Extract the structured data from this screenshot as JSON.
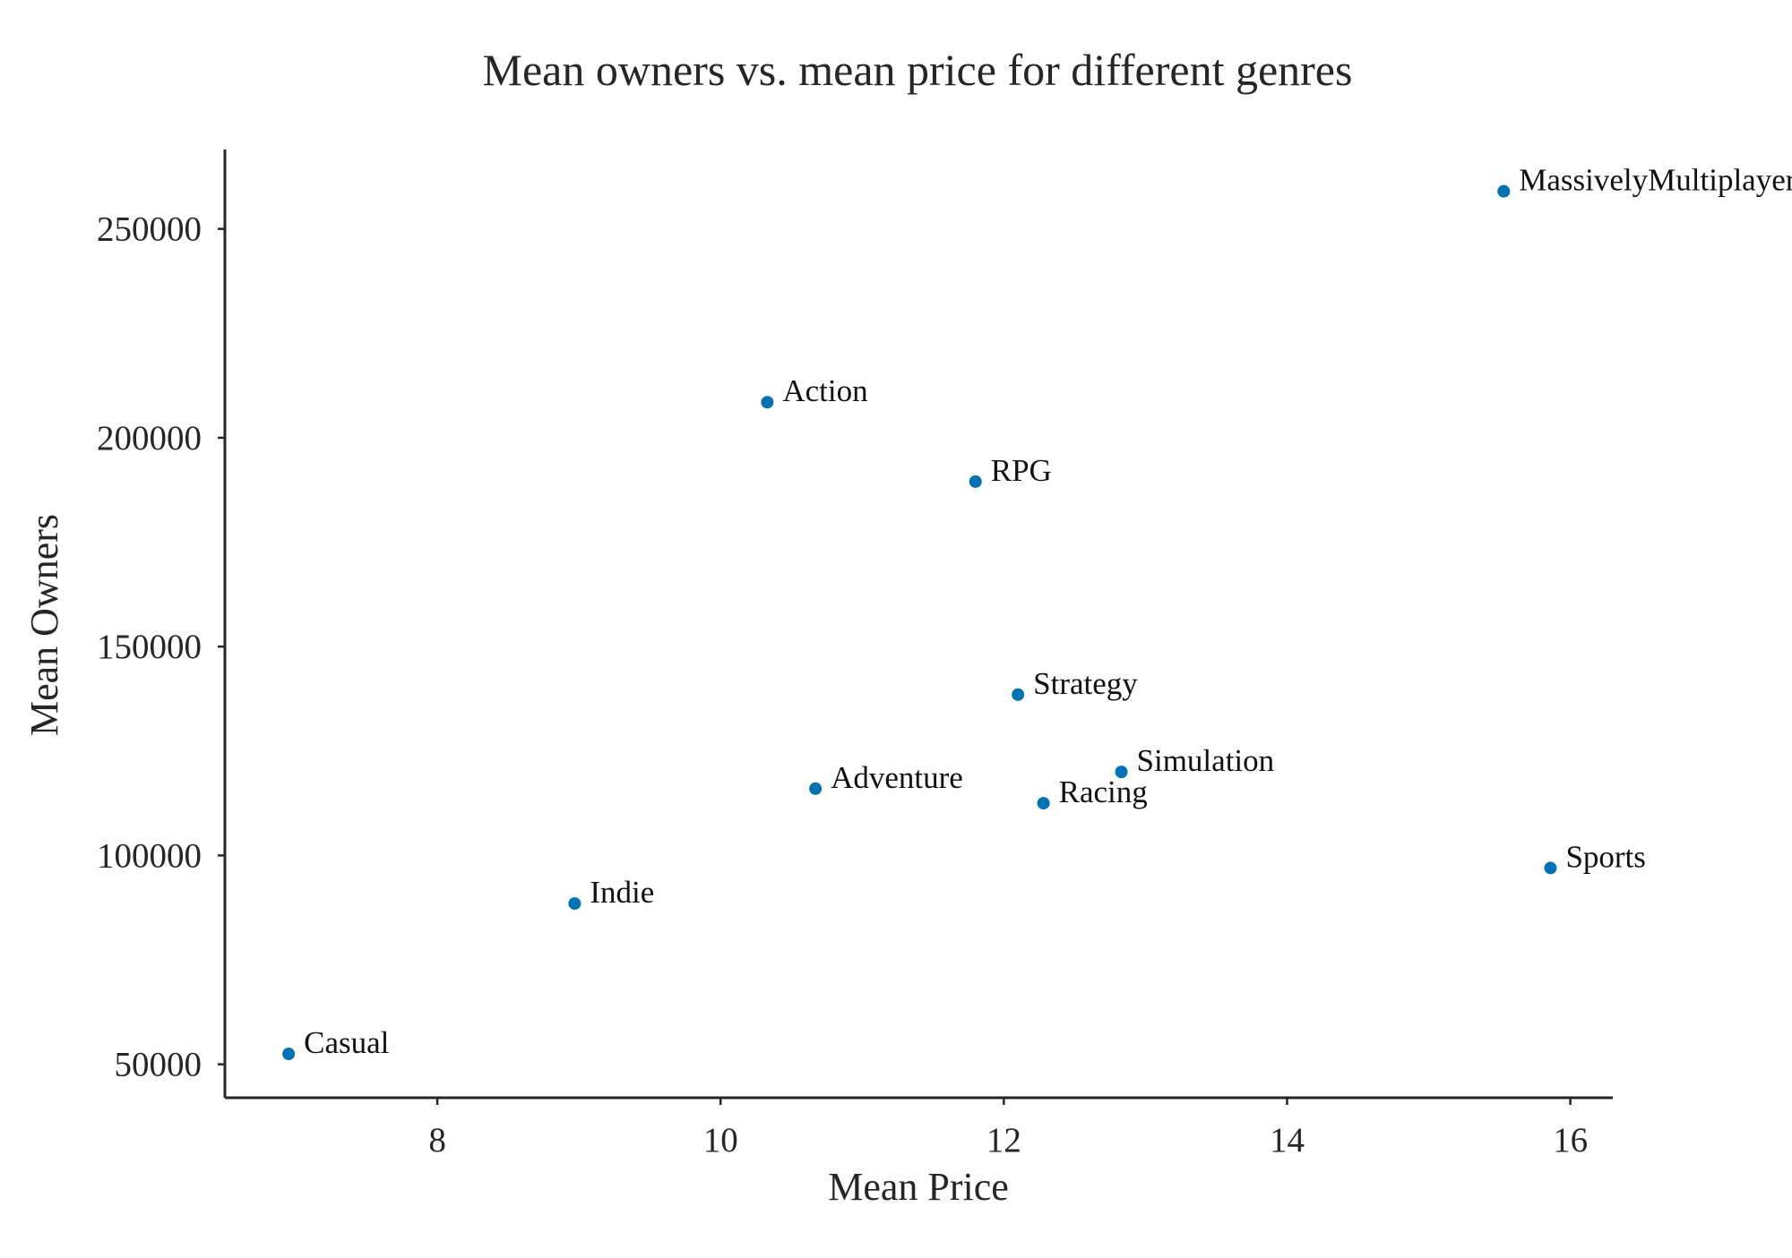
{
  "chart_data": {
    "type": "scatter",
    "title": "Mean owners vs. mean price for different genres",
    "xlabel": "Mean Price",
    "ylabel": "Mean Owners",
    "xlim": [
      6.5,
      16.3
    ],
    "ylim": [
      42000,
      269000
    ],
    "xticks": [
      8,
      10,
      12,
      14,
      16
    ],
    "yticks": [
      50000,
      100000,
      150000,
      200000,
      250000
    ],
    "grid": false,
    "marker_color": "#0072b2",
    "points": [
      {
        "label": "Casual",
        "x": 6.95,
        "y": 52500
      },
      {
        "label": "Indie",
        "x": 8.97,
        "y": 88500
      },
      {
        "label": "Action",
        "x": 10.33,
        "y": 208500
      },
      {
        "label": "Adventure",
        "x": 10.67,
        "y": 116000
      },
      {
        "label": "RPG",
        "x": 11.8,
        "y": 189500
      },
      {
        "label": "Strategy",
        "x": 12.1,
        "y": 138500
      },
      {
        "label": "Racing",
        "x": 12.28,
        "y": 112500
      },
      {
        "label": "Simulation",
        "x": 12.83,
        "y": 120000
      },
      {
        "label": "MassivelyMultiplayer",
        "x": 15.53,
        "y": 259000
      },
      {
        "label": "Sports",
        "x": 15.86,
        "y": 97000
      }
    ]
  }
}
